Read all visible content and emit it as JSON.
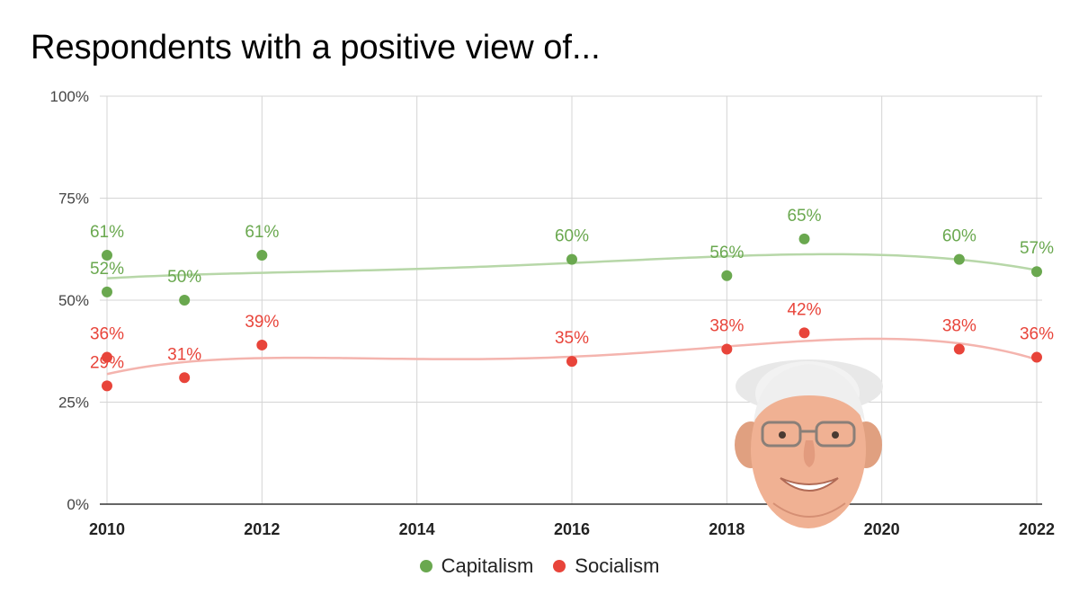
{
  "chart_data": {
    "type": "scatter",
    "title": "Respondents with a positive view of...",
    "xlabel": "",
    "ylabel": "",
    "xlim": [
      2010,
      2022
    ],
    "ylim": [
      0,
      100
    ],
    "x_ticks": [
      "2010",
      "2012",
      "2014",
      "2016",
      "2018",
      "2020",
      "2022"
    ],
    "y_ticks": [
      "0%",
      "25%",
      "50%",
      "75%",
      "100%"
    ],
    "grid": true,
    "legend_position": "bottom",
    "trendlines": true,
    "series": [
      {
        "name": "Capitalism",
        "color": "#6aa84f",
        "trend_color": "#b7d7a8",
        "points": [
          {
            "x": 2010,
            "y": 52,
            "label": "52%"
          },
          {
            "x": 2010,
            "y": 61,
            "label": "61%"
          },
          {
            "x": 2011,
            "y": 50,
            "label": "50%"
          },
          {
            "x": 2012,
            "y": 61,
            "label": "61%"
          },
          {
            "x": 2016,
            "y": 60,
            "label": "60%"
          },
          {
            "x": 2018,
            "y": 56,
            "label": "56%"
          },
          {
            "x": 2019,
            "y": 65,
            "label": "65%"
          },
          {
            "x": 2021,
            "y": 60,
            "label": "60%"
          },
          {
            "x": 2022,
            "y": 57,
            "label": "57%"
          }
        ]
      },
      {
        "name": "Socialism",
        "color": "#e8443a",
        "trend_color": "#f4b4ae",
        "points": [
          {
            "x": 2010,
            "y": 29,
            "label": "29%"
          },
          {
            "x": 2010,
            "y": 36,
            "label": "36%"
          },
          {
            "x": 2011,
            "y": 31,
            "label": "31%"
          },
          {
            "x": 2012,
            "y": 39,
            "label": "39%"
          },
          {
            "x": 2016,
            "y": 35,
            "label": "35%"
          },
          {
            "x": 2018,
            "y": 38,
            "label": "38%"
          },
          {
            "x": 2019,
            "y": 42,
            "label": "42%"
          },
          {
            "x": 2021,
            "y": 38,
            "label": "38%"
          },
          {
            "x": 2022,
            "y": 36,
            "label": "36%"
          }
        ]
      }
    ]
  }
}
